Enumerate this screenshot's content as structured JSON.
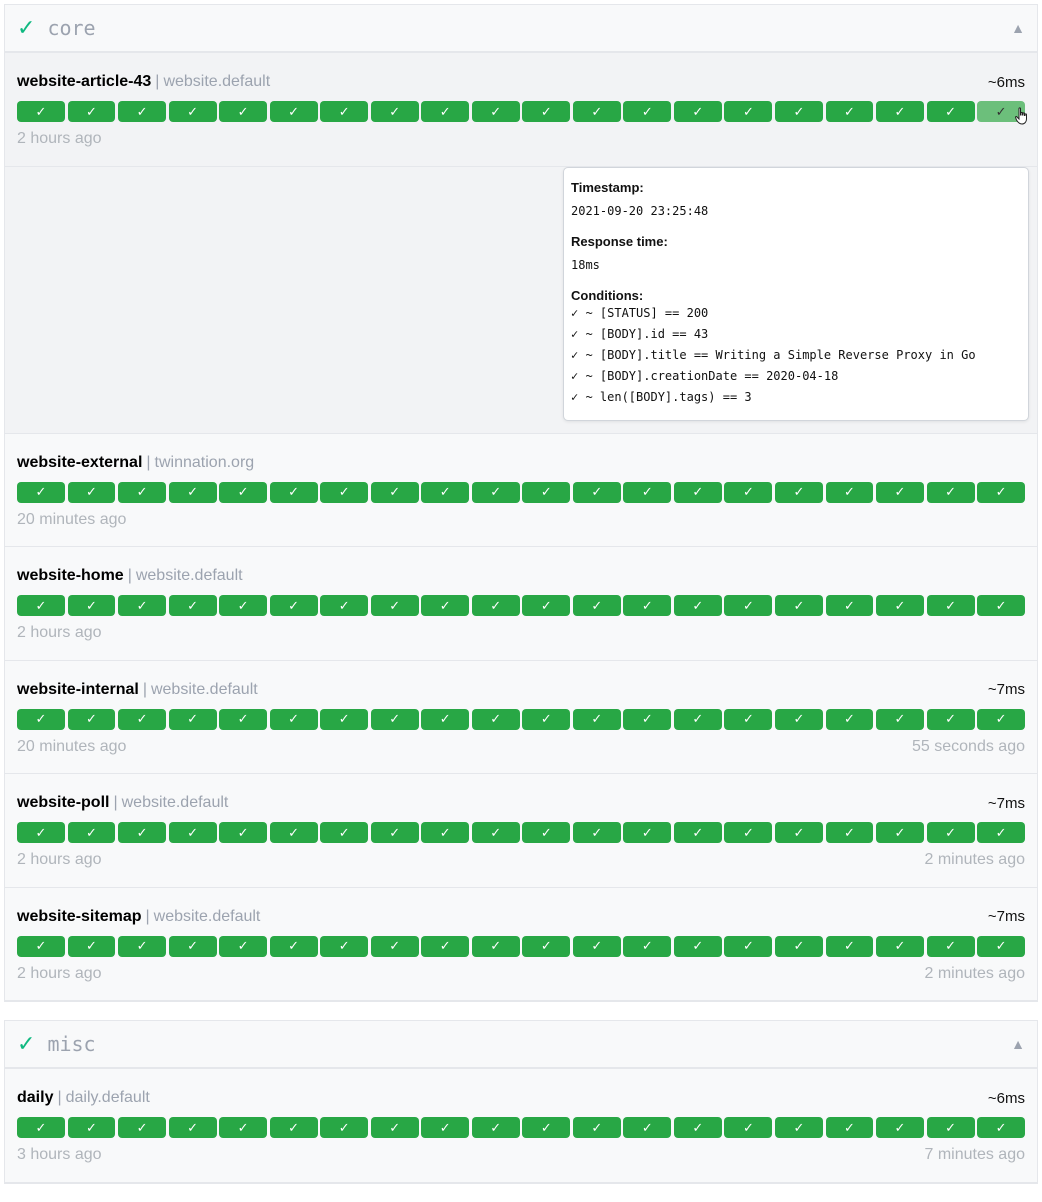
{
  "groups": [
    {
      "name": "core",
      "status_icon": "check",
      "toggle_icon": "triangle-up",
      "rows": [
        {
          "name": "website-article-43",
          "group": "website.default",
          "response": "~6ms",
          "oldest": "2 hours ago",
          "newest": ""
        },
        {
          "name": "website-external",
          "group": "twinnation.org",
          "response": "",
          "oldest": "20 minutes ago",
          "newest": ""
        },
        {
          "name": "website-home",
          "group": "website.default",
          "response": "",
          "oldest": "2 hours ago",
          "newest": ""
        },
        {
          "name": "website-internal",
          "group": "website.default",
          "response": "~7ms",
          "oldest": "20 minutes ago",
          "newest": "55 seconds ago"
        },
        {
          "name": "website-poll",
          "group": "website.default",
          "response": "~7ms",
          "oldest": "2 hours ago",
          "newest": "2 minutes ago"
        },
        {
          "name": "website-sitemap",
          "group": "website.default",
          "response": "~7ms",
          "oldest": "2 hours ago",
          "newest": "2 minutes ago"
        }
      ]
    },
    {
      "name": "misc",
      "status_icon": "check",
      "toggle_icon": "triangle-up",
      "rows": [
        {
          "name": "daily",
          "group": "daily.default",
          "response": "~6ms",
          "oldest": "3 hours ago",
          "newest": "7 minutes ago"
        }
      ]
    }
  ],
  "bar_symbol": "✓",
  "bars_per_row": 20,
  "separator": "|",
  "colors": {
    "success": "#28a745",
    "hovered": "#6cbf7b",
    "group_check": "#10b981"
  },
  "tooltip": {
    "timestamp_label": "Timestamp:",
    "timestamp": "2021-09-20 23:25:48",
    "response_label": "Response time:",
    "response": "18ms",
    "conditions_label": "Conditions:",
    "conditions": [
      "✓ ~ [STATUS] == 200",
      "✓ ~ [BODY].id == 43",
      "✓ ~ [BODY].title == Writing a Simple Reverse Proxy in Go",
      "✓ ~ [BODY].creationDate == 2020-04-18",
      "✓ ~ len([BODY].tags) == 3"
    ]
  }
}
